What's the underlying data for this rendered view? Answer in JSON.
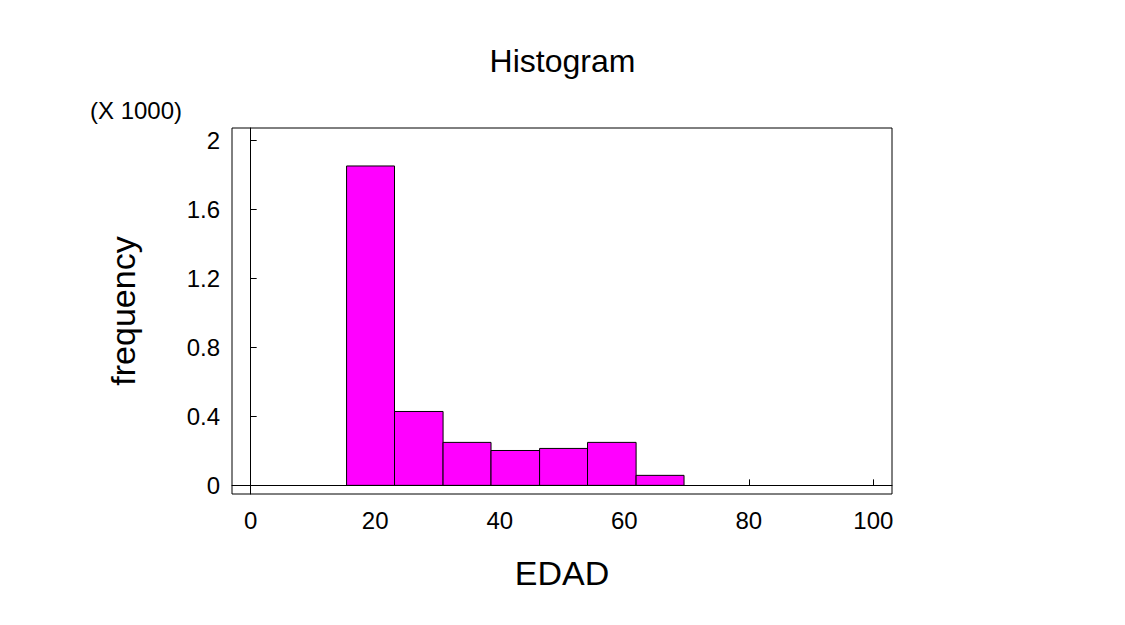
{
  "chart_data": {
    "type": "histogram",
    "title": "Histogram",
    "x_label": "EDAD",
    "y_label": "frequency",
    "annotation": "(X 1000)",
    "bins": [
      15.4,
      23.1,
      30.9,
      38.6,
      46.4,
      54.1,
      61.9,
      69.6
    ],
    "values": [
      1.85,
      0.428,
      0.249,
      0.202,
      0.214,
      0.249,
      0.058
    ],
    "color": "#ff00ff",
    "xlim": [
      -3,
      103
    ],
    "xticks": [
      0,
      20,
      40,
      60,
      80,
      100
    ],
    "ylim": [
      -0.05,
      2.07
    ],
    "yticks": [
      0,
      0.4,
      0.8,
      1.2,
      1.6,
      2
    ],
    "grid": false
  }
}
